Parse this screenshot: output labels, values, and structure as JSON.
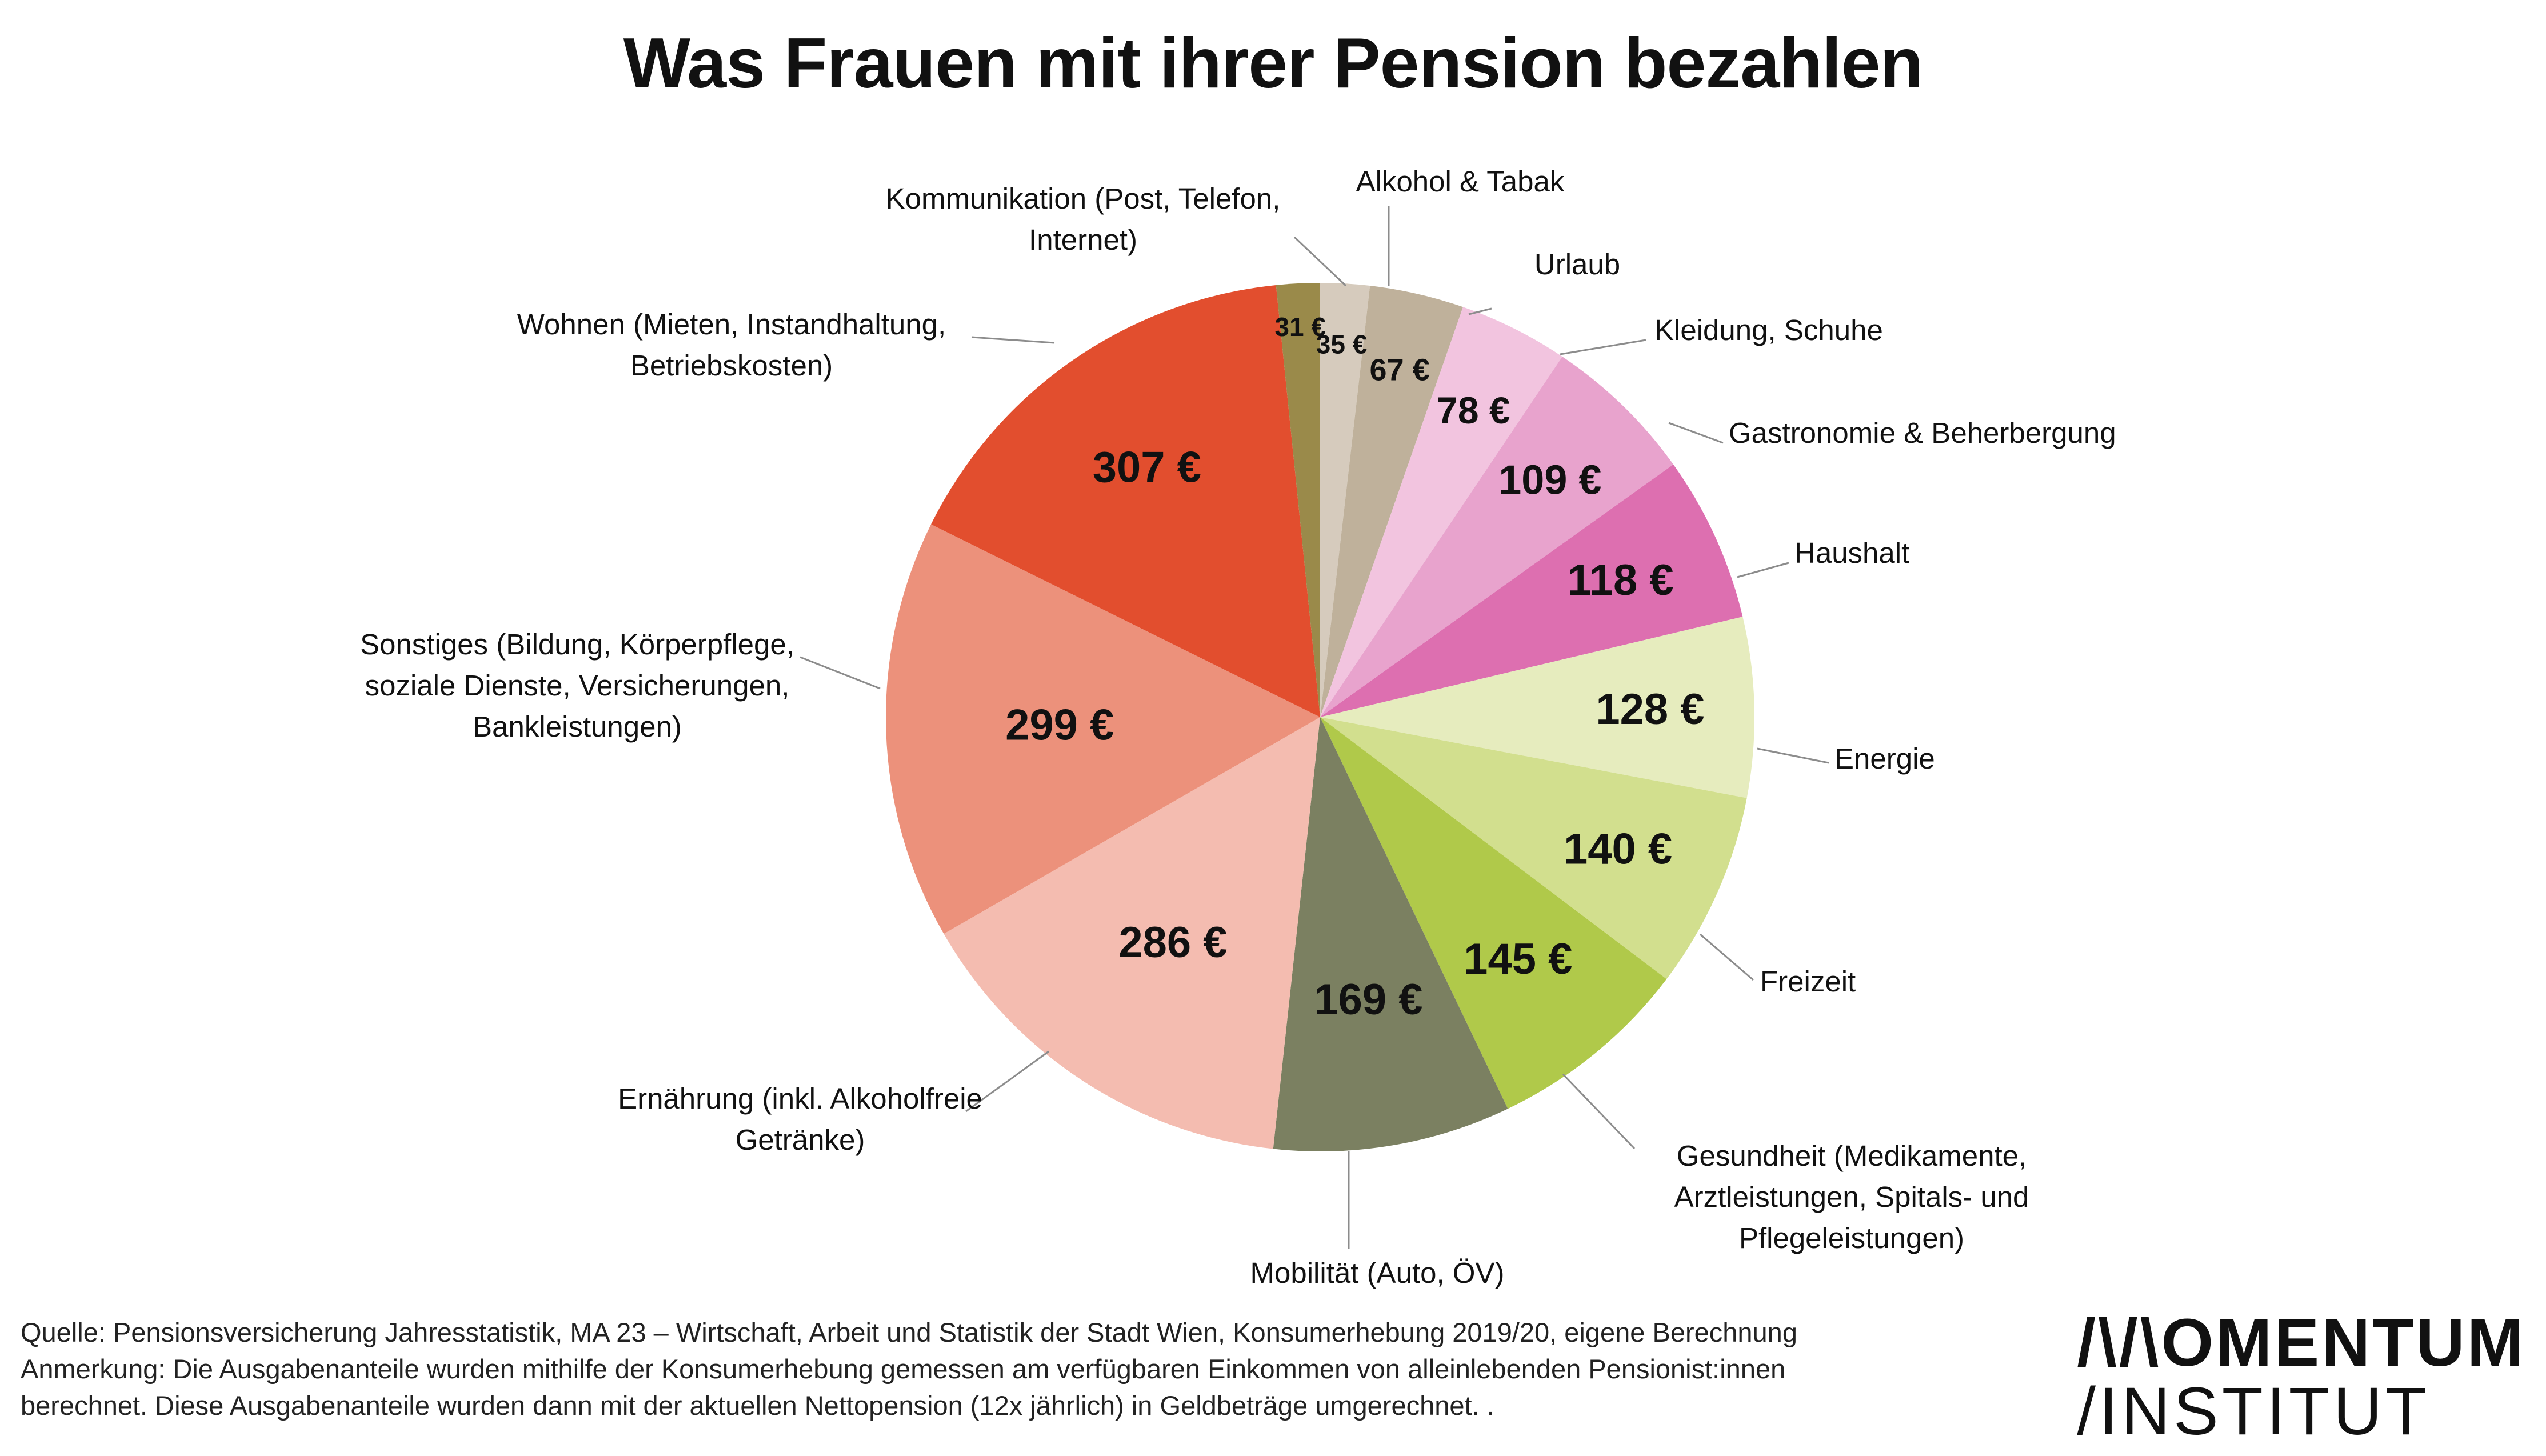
{
  "title": "Was Frauen mit ihrer Pension bezahlen",
  "chart_data": {
    "type": "pie",
    "unit": "€",
    "slices": [
      {
        "category": "Alkohol & Tabak",
        "value": 35,
        "label": "35 €",
        "color": "#d6cbbd"
      },
      {
        "category": "Urlaub",
        "value": 67,
        "label": "67 €",
        "color": "#bfb19b"
      },
      {
        "category": "Kleidung, Schuhe",
        "value": 78,
        "label": "78 €",
        "color": "#f2c4df"
      },
      {
        "category": "Gastronomie & Beherbergung",
        "value": 109,
        "label": "109 €",
        "color": "#e8a3cd"
      },
      {
        "category": "Haushalt",
        "value": 118,
        "label": "118 €",
        "color": "#dd6fb0"
      },
      {
        "category": "Energie",
        "value": 128,
        "label": "128 €",
        "color": "#e6ecbe"
      },
      {
        "category": "Freizeit",
        "value": 140,
        "label": "140 €",
        "color": "#d2df8e"
      },
      {
        "category": "Gesundheit (Medikamente, Arztleistungen, Spitals- und Pflegeleistungen)",
        "value": 145,
        "label": "145 €",
        "color": "#b0c94a"
      },
      {
        "category": "Mobilität (Auto, ÖV)",
        "value": 169,
        "label": "169 €",
        "color": "#7b8061"
      },
      {
        "category": "Ernährung (inkl. Alkoholfreie Getränke)",
        "value": 286,
        "label": "286 €",
        "color": "#f4bcb0"
      },
      {
        "category": "Sonstiges (Bildung, Körperpflege, soziale Dienste, Versicherungen, Bankleistungen)",
        "value": 299,
        "label": "299 €",
        "color": "#ec917b"
      },
      {
        "category": "Wohnen (Mieten, Instandhaltung, Betriebskosten)",
        "value": 307,
        "label": "307 €",
        "color": "#e24e2e"
      },
      {
        "category": "Kommunikation (Post, Telefon, Internet)",
        "value": 31,
        "label": "31 €",
        "color": "#9a8a4a"
      }
    ]
  },
  "footnotes": {
    "source": "Quelle: Pensionsversicherung Jahresstatistik, MA 23 – Wirtschaft, Arbeit und Statistik der Stadt Wien, Konsumerhebung 2019/20, eigene Berechnung",
    "note_line1": "Anmerkung: Die Ausgabenanteile wurden mithilfe der Konsumerhebung gemessen am verfügbaren Einkommen von alleinlebenden Pensionist:innen",
    "note_line2": "berechnet. Diese Ausgabenanteile wurden dann mit der aktuellen Nettopension (12x jährlich) in Geldbeträge umgerechnet. ."
  },
  "logo": {
    "line1": "/\\/\\OMENTUM",
    "line2": "/INSTITUT"
  }
}
